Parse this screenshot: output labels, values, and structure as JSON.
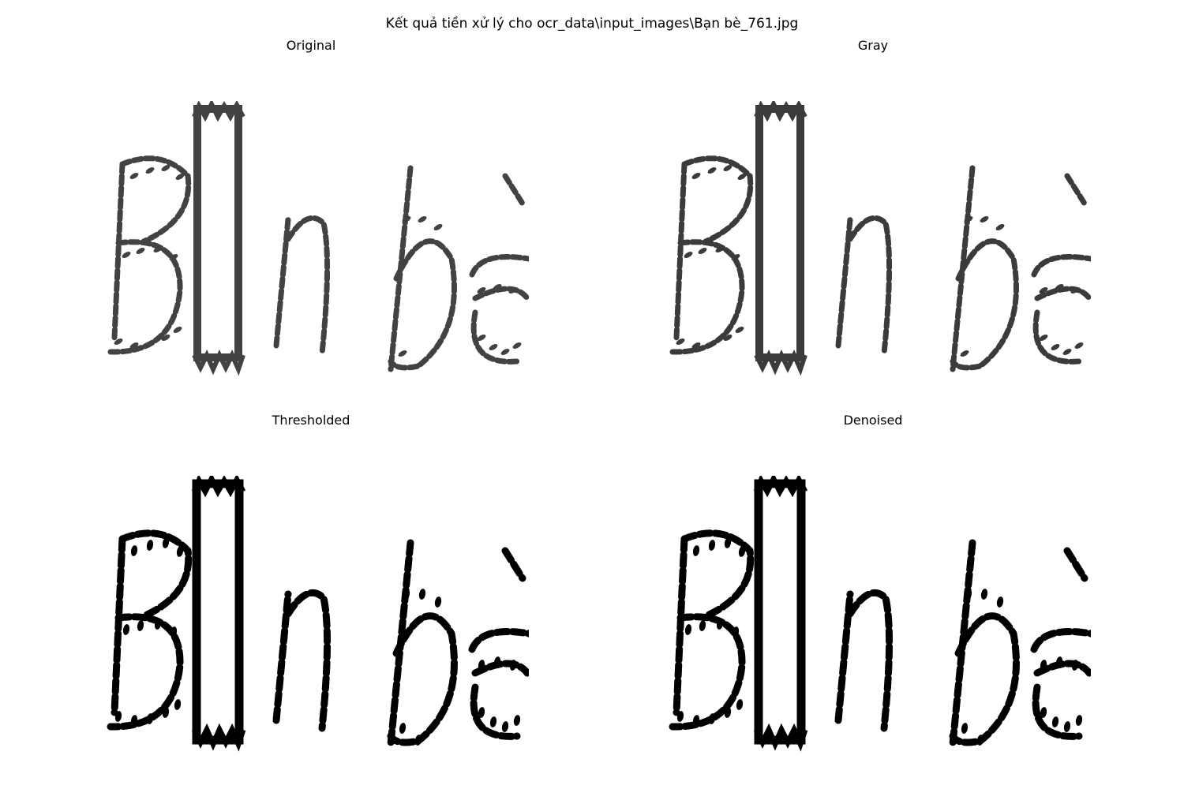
{
  "figure": {
    "title": "Kết quả tiền xử lý cho ocr_data\\input_images\\Bạn bè_761.jpg"
  },
  "panels": [
    {
      "title": "Original",
      "style": "soft",
      "ink": "#222222",
      "bg": "#ffffff"
    },
    {
      "title": "Gray",
      "style": "soft",
      "ink": "#1a1a1a",
      "bg": "#ffffff"
    },
    {
      "title": "Thresholded",
      "style": "binary",
      "ink": "#000000",
      "bg": "#ffffff"
    },
    {
      "title": "Denoised",
      "style": "binary",
      "ink": "#000000",
      "bg": "#ffffff"
    }
  ]
}
